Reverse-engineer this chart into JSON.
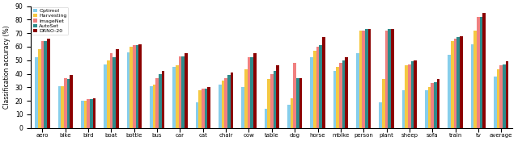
{
  "categories": [
    "aero",
    "bike",
    "bird",
    "boat",
    "bottle",
    "bus",
    "car",
    "cat",
    "chair",
    "cow",
    "table",
    "dog",
    "horse",
    "mbike",
    "person",
    "plant",
    "sheep",
    "sofa",
    "train",
    "tv",
    "average"
  ],
  "series": {
    "Optimol": [
      52,
      31,
      20,
      47,
      56,
      31,
      45,
      19,
      32,
      30,
      14,
      17,
      52,
      42,
      55,
      19,
      28,
      28,
      54,
      62,
      38
    ],
    "Harvesting": [
      58,
      31,
      20,
      50,
      60,
      32,
      46,
      28,
      35,
      43,
      36,
      22,
      57,
      45,
      72,
      36,
      46,
      30,
      64,
      72,
      43
    ],
    "ImageNet": [
      64,
      37,
      21,
      55,
      61,
      37,
      53,
      29,
      37,
      52,
      40,
      48,
      60,
      48,
      72,
      72,
      47,
      33,
      66,
      82,
      46
    ],
    "AutoSet": [
      64,
      36,
      21,
      52,
      61,
      40,
      53,
      29,
      39,
      52,
      42,
      37,
      61,
      50,
      73,
      73,
      49,
      34,
      67,
      82,
      47
    ],
    "DRNO-20": [
      66,
      39,
      22,
      58,
      62,
      42,
      55,
      30,
      41,
      55,
      46,
      37,
      67,
      52,
      73,
      73,
      50,
      36,
      68,
      85,
      49
    ]
  },
  "colors": {
    "Optimol": "#87CEEB",
    "Harvesting": "#F5C842",
    "ImageNet": "#F08080",
    "AutoSet": "#2E8B8B",
    "DRNO-20": "#8B0000"
  },
  "ylabel": "Classification accuracy (%)",
  "ylim": [
    0,
    90
  ],
  "yticks": [
    0,
    10,
    20,
    30,
    40,
    50,
    60,
    70,
    80,
    90
  ],
  "legend_order": [
    "Optimol",
    "Harvesting",
    "ImageNet",
    "AutoSet",
    "DRNO-20"
  ]
}
